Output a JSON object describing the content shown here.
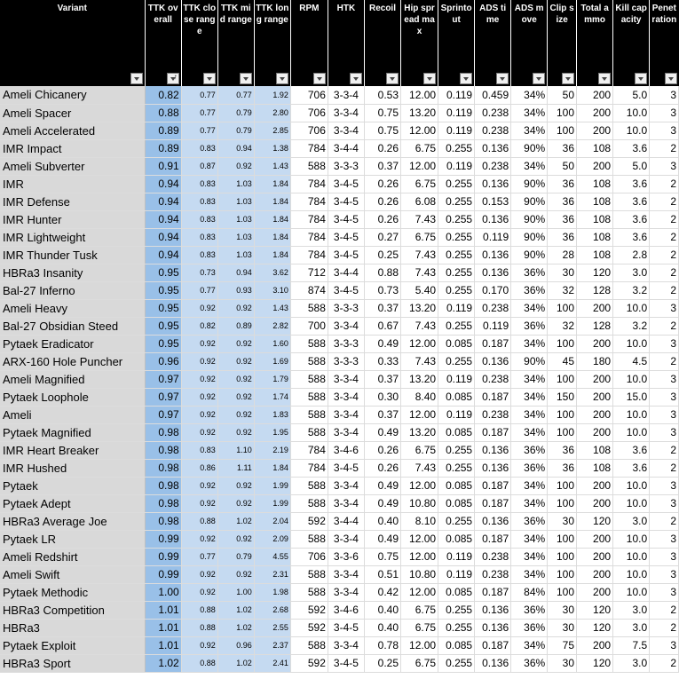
{
  "columns": [
    {
      "key": "variant",
      "label": "Variant"
    },
    {
      "key": "ttk_overall",
      "label": "TTK overall"
    },
    {
      "key": "ttk_close",
      "label": "TTK close range"
    },
    {
      "key": "ttk_mid",
      "label": "TTK mid range"
    },
    {
      "key": "ttk_long",
      "label": "TTK long range"
    },
    {
      "key": "rpm",
      "label": "RPM"
    },
    {
      "key": "htk",
      "label": "HTK"
    },
    {
      "key": "recoil",
      "label": "Recoil"
    },
    {
      "key": "hip_spread",
      "label": "Hip spread max"
    },
    {
      "key": "sprintout",
      "label": "Sprintout"
    },
    {
      "key": "ads_time",
      "label": "ADS time"
    },
    {
      "key": "ads_move",
      "label": "ADS move"
    },
    {
      "key": "clip",
      "label": "Clip size"
    },
    {
      "key": "ammo",
      "label": "Total ammo"
    },
    {
      "key": "kill_capacity",
      "label": "Kill capacity"
    },
    {
      "key": "penetration",
      "label": "Penetration"
    }
  ],
  "rows": [
    [
      "Ameli Chicanery",
      "0.82",
      "0.77",
      "0.77",
      "1.92",
      "706",
      "3-3-4",
      "0.53",
      "12.00",
      "0.119",
      "0.459",
      "34%",
      "50",
      "200",
      "5.0",
      "3"
    ],
    [
      "Ameli Spacer",
      "0.88",
      "0.77",
      "0.79",
      "2.80",
      "706",
      "3-3-4",
      "0.75",
      "13.20",
      "0.119",
      "0.238",
      "34%",
      "100",
      "200",
      "10.0",
      "3"
    ],
    [
      "Ameli Accelerated",
      "0.89",
      "0.77",
      "0.79",
      "2.85",
      "706",
      "3-3-4",
      "0.75",
      "12.00",
      "0.119",
      "0.238",
      "34%",
      "100",
      "200",
      "10.0",
      "3"
    ],
    [
      "IMR Impact",
      "0.89",
      "0.83",
      "0.94",
      "1.38",
      "784",
      "3-4-4",
      "0.26",
      "6.75",
      "0.255",
      "0.136",
      "90%",
      "36",
      "108",
      "3.6",
      "2"
    ],
    [
      "Ameli Subverter",
      "0.91",
      "0.87",
      "0.92",
      "1.43",
      "588",
      "3-3-3",
      "0.37",
      "12.00",
      "0.119",
      "0.238",
      "34%",
      "50",
      "200",
      "5.0",
      "3"
    ],
    [
      "IMR",
      "0.94",
      "0.83",
      "1.03",
      "1.84",
      "784",
      "3-4-5",
      "0.26",
      "6.75",
      "0.255",
      "0.136",
      "90%",
      "36",
      "108",
      "3.6",
      "2"
    ],
    [
      "IMR Defense",
      "0.94",
      "0.83",
      "1.03",
      "1.84",
      "784",
      "3-4-5",
      "0.26",
      "6.08",
      "0.255",
      "0.153",
      "90%",
      "36",
      "108",
      "3.6",
      "2"
    ],
    [
      "IMR Hunter",
      "0.94",
      "0.83",
      "1.03",
      "1.84",
      "784",
      "3-4-5",
      "0.26",
      "7.43",
      "0.255",
      "0.136",
      "90%",
      "36",
      "108",
      "3.6",
      "2"
    ],
    [
      "IMR Lightweight",
      "0.94",
      "0.83",
      "1.03",
      "1.84",
      "784",
      "3-4-5",
      "0.27",
      "6.75",
      "0.255",
      "0.119",
      "90%",
      "36",
      "108",
      "3.6",
      "2"
    ],
    [
      "IMR Thunder Tusk",
      "0.94",
      "0.83",
      "1.03",
      "1.84",
      "784",
      "3-4-5",
      "0.25",
      "7.43",
      "0.255",
      "0.136",
      "90%",
      "28",
      "108",
      "2.8",
      "2"
    ],
    [
      "HBRa3 Insanity",
      "0.95",
      "0.73",
      "0.94",
      "3.62",
      "712",
      "3-4-4",
      "0.88",
      "7.43",
      "0.255",
      "0.136",
      "36%",
      "30",
      "120",
      "3.0",
      "2"
    ],
    [
      "Bal-27 Inferno",
      "0.95",
      "0.77",
      "0.93",
      "3.10",
      "874",
      "3-4-5",
      "0.73",
      "5.40",
      "0.255",
      "0.170",
      "36%",
      "32",
      "128",
      "3.2",
      "2"
    ],
    [
      "Ameli Heavy",
      "0.95",
      "0.92",
      "0.92",
      "1.43",
      "588",
      "3-3-3",
      "0.37",
      "13.20",
      "0.119",
      "0.238",
      "34%",
      "100",
      "200",
      "10.0",
      "3"
    ],
    [
      "Bal-27 Obsidian Steed",
      "0.95",
      "0.82",
      "0.89",
      "2.82",
      "700",
      "3-3-4",
      "0.67",
      "7.43",
      "0.255",
      "0.119",
      "36%",
      "32",
      "128",
      "3.2",
      "2"
    ],
    [
      "Pytaek Eradicator",
      "0.95",
      "0.92",
      "0.92",
      "1.60",
      "588",
      "3-3-3",
      "0.49",
      "12.00",
      "0.085",
      "0.187",
      "34%",
      "100",
      "200",
      "10.0",
      "3"
    ],
    [
      "ARX-160 Hole Puncher",
      "0.96",
      "0.92",
      "0.92",
      "1.69",
      "588",
      "3-3-3",
      "0.33",
      "7.43",
      "0.255",
      "0.136",
      "90%",
      "45",
      "180",
      "4.5",
      "2"
    ],
    [
      "Ameli Magnified",
      "0.97",
      "0.92",
      "0.92",
      "1.79",
      "588",
      "3-3-4",
      "0.37",
      "13.20",
      "0.119",
      "0.238",
      "34%",
      "100",
      "200",
      "10.0",
      "3"
    ],
    [
      "Pytaek Loophole",
      "0.97",
      "0.92",
      "0.92",
      "1.74",
      "588",
      "3-3-4",
      "0.30",
      "8.40",
      "0.085",
      "0.187",
      "34%",
      "150",
      "200",
      "15.0",
      "3"
    ],
    [
      "Ameli",
      "0.97",
      "0.92",
      "0.92",
      "1.83",
      "588",
      "3-3-4",
      "0.37",
      "12.00",
      "0.119",
      "0.238",
      "34%",
      "100",
      "200",
      "10.0",
      "3"
    ],
    [
      "Pytaek Magnified",
      "0.98",
      "0.92",
      "0.92",
      "1.95",
      "588",
      "3-3-4",
      "0.49",
      "13.20",
      "0.085",
      "0.187",
      "34%",
      "100",
      "200",
      "10.0",
      "3"
    ],
    [
      "IMR Heart Breaker",
      "0.98",
      "0.83",
      "1.10",
      "2.19",
      "784",
      "3-4-6",
      "0.26",
      "6.75",
      "0.255",
      "0.136",
      "36%",
      "36",
      "108",
      "3.6",
      "2"
    ],
    [
      "IMR Hushed",
      "0.98",
      "0.86",
      "1.11",
      "1.84",
      "784",
      "3-4-5",
      "0.26",
      "7.43",
      "0.255",
      "0.136",
      "36%",
      "36",
      "108",
      "3.6",
      "2"
    ],
    [
      "Pytaek",
      "0.98",
      "0.92",
      "0.92",
      "1.99",
      "588",
      "3-3-4",
      "0.49",
      "12.00",
      "0.085",
      "0.187",
      "34%",
      "100",
      "200",
      "10.0",
      "3"
    ],
    [
      "Pytaek Adept",
      "0.98",
      "0.92",
      "0.92",
      "1.99",
      "588",
      "3-3-4",
      "0.49",
      "10.80",
      "0.085",
      "0.187",
      "34%",
      "100",
      "200",
      "10.0",
      "3"
    ],
    [
      "HBRa3 Average Joe",
      "0.98",
      "0.88",
      "1.02",
      "2.04",
      "592",
      "3-4-4",
      "0.40",
      "8.10",
      "0.255",
      "0.136",
      "36%",
      "30",
      "120",
      "3.0",
      "2"
    ],
    [
      "Pytaek LR",
      "0.99",
      "0.92",
      "0.92",
      "2.09",
      "588",
      "3-3-4",
      "0.49",
      "12.00",
      "0.085",
      "0.187",
      "34%",
      "100",
      "200",
      "10.0",
      "3"
    ],
    [
      "Ameli Redshirt",
      "0.99",
      "0.77",
      "0.79",
      "4.55",
      "706",
      "3-3-6",
      "0.75",
      "12.00",
      "0.119",
      "0.238",
      "34%",
      "100",
      "200",
      "10.0",
      "3"
    ],
    [
      "Ameli Swift",
      "0.99",
      "0.92",
      "0.92",
      "2.31",
      "588",
      "3-3-4",
      "0.51",
      "10.80",
      "0.119",
      "0.238",
      "34%",
      "100",
      "200",
      "10.0",
      "3"
    ],
    [
      "Pytaek Methodic",
      "1.00",
      "0.92",
      "1.00",
      "1.98",
      "588",
      "3-3-4",
      "0.42",
      "12.00",
      "0.085",
      "0.187",
      "84%",
      "100",
      "200",
      "10.0",
      "3"
    ],
    [
      "HBRa3 Competition",
      "1.01",
      "0.88",
      "1.02",
      "2.68",
      "592",
      "3-4-6",
      "0.40",
      "6.75",
      "0.255",
      "0.136",
      "36%",
      "30",
      "120",
      "3.0",
      "2"
    ],
    [
      "HBRa3",
      "1.01",
      "0.88",
      "1.02",
      "2.55",
      "592",
      "3-4-5",
      "0.40",
      "6.75",
      "0.255",
      "0.136",
      "36%",
      "30",
      "120",
      "3.0",
      "2"
    ],
    [
      "Pytaek Exploit",
      "1.01",
      "0.92",
      "0.96",
      "2.37",
      "588",
      "3-3-4",
      "0.78",
      "12.00",
      "0.085",
      "0.187",
      "34%",
      "75",
      "200",
      "7.5",
      "3"
    ],
    [
      "HBRa3 Sport",
      "1.02",
      "0.88",
      "1.02",
      "2.41",
      "592",
      "3-4-5",
      "0.25",
      "6.75",
      "0.255",
      "0.136",
      "36%",
      "30",
      "120",
      "3.0",
      "2"
    ]
  ],
  "colors": {
    "header_bg": "#000000",
    "variant_bg": "#d9d9d9",
    "ttk_overall_bg": "#99c0e8",
    "ttk_range_bg": "#c5daf1"
  },
  "sort": {
    "column": "ttk_overall",
    "direction": "ascending",
    "icon": "sort-ascending-icon"
  }
}
